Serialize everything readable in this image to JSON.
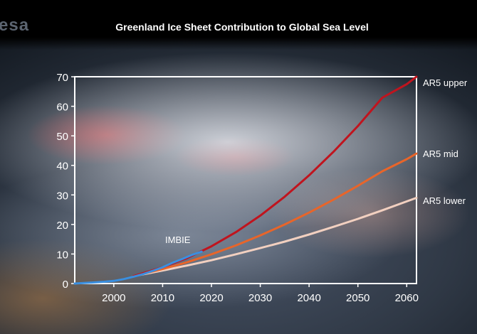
{
  "logo_text": "esa",
  "chart_data": {
    "type": "line",
    "title": "Greenland Ice Sheet Contribution to Global Sea Level",
    "xlabel": "",
    "ylabel": "",
    "xlim": [
      1992,
      2062
    ],
    "ylim": [
      0,
      70
    ],
    "x_ticks": [
      2000,
      2010,
      2020,
      2030,
      2040,
      2050,
      2060
    ],
    "y_ticks": [
      0,
      10,
      20,
      30,
      40,
      50,
      60,
      70
    ],
    "grid": false,
    "series": [
      {
        "name": "IMBIE",
        "color": "#3a8fe0",
        "x": [
          1992,
          1995,
          1998,
          2000,
          2002,
          2004,
          2006,
          2008,
          2010,
          2012,
          2014,
          2016,
          2018
        ],
        "values": [
          0.0,
          0.3,
          0.6,
          0.9,
          1.5,
          2.3,
          3.2,
          4.3,
          5.5,
          7.0,
          8.3,
          9.7,
          10.8
        ]
      },
      {
        "name": "AR5 upper",
        "color": "#c0141e",
        "x": [
          2004,
          2010,
          2015,
          2020,
          2025,
          2030,
          2035,
          2040,
          2045,
          2050,
          2055,
          2060,
          2062
        ],
        "values": [
          2.5,
          5.5,
          8.6,
          12.6,
          17.4,
          23.0,
          29.4,
          36.6,
          44.6,
          53.3,
          62.9,
          67.5,
          70.0
        ]
      },
      {
        "name": "AR5 mid",
        "color": "#e8652a",
        "x": [
          2004,
          2010,
          2015,
          2020,
          2025,
          2030,
          2035,
          2040,
          2045,
          2050,
          2055,
          2060,
          2062
        ],
        "values": [
          2.5,
          4.9,
          7.2,
          9.9,
          12.9,
          16.3,
          20.0,
          24.0,
          28.4,
          33.1,
          38.0,
          42.1,
          44.0
        ]
      },
      {
        "name": "AR5 lower",
        "color": "#f2d0c0",
        "x": [
          2004,
          2010,
          2015,
          2020,
          2025,
          2030,
          2035,
          2040,
          2045,
          2050,
          2055,
          2060,
          2062
        ],
        "values": [
          2.5,
          4.4,
          6.1,
          7.9,
          9.9,
          12.0,
          14.2,
          16.6,
          19.2,
          21.9,
          24.8,
          27.8,
          29.0
        ]
      }
    ]
  }
}
